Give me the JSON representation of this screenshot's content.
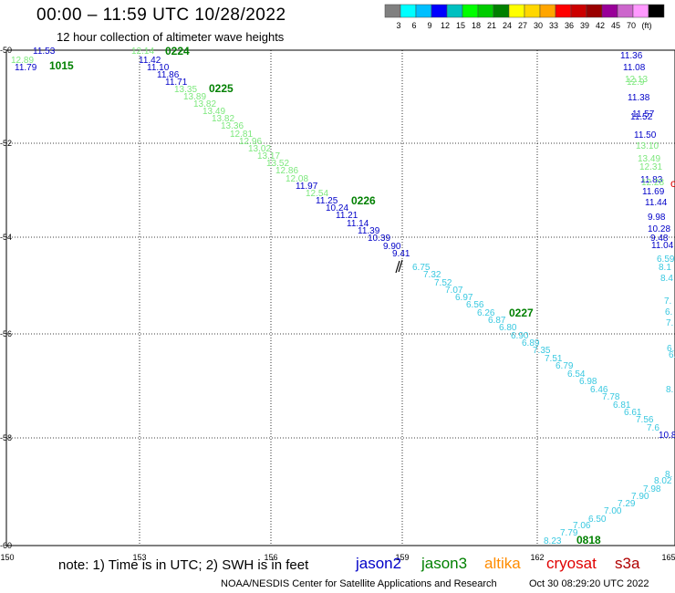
{
  "header": {
    "title": "00:00 – 11:59 UTC 10/28/2022",
    "subtitle": "12 hour collection of altimeter wave heights"
  },
  "scale": {
    "colors": [
      "#808080",
      "#00ffff",
      "#00bfff",
      "#0000ff",
      "#00c0c0",
      "#00ff00",
      "#00cc00",
      "#008000",
      "#ffff00",
      "#ffd700",
      "#ffa500",
      "#ff0000",
      "#cc0000",
      "#990000",
      "#990099",
      "#cc66cc",
      "#ff99ff",
      "#000000"
    ],
    "labels": [
      "3",
      "6",
      "9",
      "12",
      "15",
      "18",
      "21",
      "24",
      "27",
      "30",
      "33",
      "36",
      "39",
      "42",
      "45",
      "70",
      "(ft)"
    ]
  },
  "axes": {
    "lon": [
      "150",
      "153",
      "156",
      "159",
      "162",
      "165"
    ],
    "lat": [
      "-50",
      "-52",
      "-54",
      "-56",
      "-58",
      "-60"
    ]
  },
  "tracks": {
    "jason2_color": "#0000c8",
    "jason3_color": "#7ce87c",
    "cryosat_color": "#38c8e0",
    "time_color": "#008000",
    "labels": [
      {
        "t": "11.53",
        "c": "b"
      },
      {
        "t": "12.89",
        "c": "g"
      },
      {
        "t": "11.79",
        "c": "b"
      },
      {
        "t": "12.14",
        "c": "g"
      },
      {
        "t": "11.42",
        "c": "b"
      },
      {
        "t": "11.10",
        "c": "b"
      },
      {
        "t": "11.86",
        "c": "b"
      },
      {
        "t": "11.71",
        "c": "b"
      },
      {
        "t": "13.35",
        "c": "g"
      },
      {
        "t": "13.89",
        "c": "g"
      },
      {
        "t": "13.82",
        "c": "g"
      },
      {
        "t": "13.49",
        "c": "g"
      },
      {
        "t": "13.82",
        "c": "g"
      },
      {
        "t": "13.36",
        "c": "g"
      },
      {
        "t": "12.81",
        "c": "g"
      },
      {
        "t": "12.96",
        "c": "g"
      },
      {
        "t": "13.02",
        "c": "g"
      },
      {
        "t": "13.17",
        "c": "g"
      },
      {
        "t": "13.52",
        "c": "g"
      },
      {
        "t": "12.86",
        "c": "g"
      },
      {
        "t": "12.08",
        "c": "g"
      },
      {
        "t": "11.97",
        "c": "b"
      },
      {
        "t": "12.54",
        "c": "g"
      },
      {
        "t": "11.25",
        "c": "b"
      },
      {
        "t": "10.24",
        "c": "b"
      },
      {
        "t": "11.21",
        "c": "b"
      },
      {
        "t": "11.14",
        "c": "b"
      },
      {
        "t": "11.39",
        "c": "b"
      },
      {
        "t": "10.39",
        "c": "b"
      },
      {
        "t": "9.90",
        "c": "b"
      },
      {
        "t": "9.41",
        "c": "b"
      },
      {
        "t": "6.75",
        "c": "c"
      },
      {
        "t": "7.32",
        "c": "c"
      },
      {
        "t": "7.52",
        "c": "c"
      },
      {
        "t": "7.07",
        "c": "c"
      },
      {
        "t": "6.97",
        "c": "c"
      },
      {
        "t": "6.56",
        "c": "c"
      },
      {
        "t": "6.26",
        "c": "c"
      },
      {
        "t": "6.87",
        "c": "c"
      },
      {
        "t": "6.80",
        "c": "c"
      },
      {
        "t": "6.90",
        "c": "c"
      },
      {
        "t": "6.89",
        "c": "c"
      },
      {
        "t": "7.35",
        "c": "c"
      },
      {
        "t": "7.51",
        "c": "c"
      },
      {
        "t": "6.79",
        "c": "c"
      },
      {
        "t": "6.54",
        "c": "c"
      },
      {
        "t": "6.98",
        "c": "c"
      },
      {
        "t": "6.46",
        "c": "c"
      },
      {
        "t": "7.78",
        "c": "c"
      },
      {
        "t": "6.81",
        "c": "c"
      },
      {
        "t": "6.61",
        "c": "c"
      },
      {
        "t": "7.56",
        "c": "c"
      },
      {
        "t": "7.6",
        "c": "c"
      },
      {
        "t": "10.87",
        "c": "b"
      },
      {
        "t": "11.36",
        "c": "b"
      },
      {
        "t": "11.08",
        "c": "b"
      },
      {
        "t": "12.13",
        "c": "g"
      },
      {
        "t": "12.9",
        "c": "g"
      },
      {
        "t": "11.38",
        "c": "b"
      },
      {
        "t": "11.57",
        "c": "b"
      },
      {
        "t": "11.52",
        "c": "b"
      },
      {
        "t": "11.50",
        "c": "b"
      },
      {
        "t": "13.10",
        "c": "g"
      },
      {
        "t": "13.49",
        "c": "g"
      },
      {
        "t": "12.31",
        "c": "g"
      },
      {
        "t": "11.83",
        "c": "b"
      },
      {
        "t": "12.28",
        "c": "g"
      },
      {
        "t": "11.69",
        "c": "b"
      },
      {
        "t": "11.44",
        "c": "b"
      },
      {
        "t": "9.98",
        "c": "b"
      },
      {
        "t": "10.28",
        "c": "b"
      },
      {
        "t": "9.48",
        "c": "b"
      },
      {
        "t": "11.04",
        "c": "b"
      },
      {
        "t": "6.59",
        "c": "c"
      },
      {
        "t": "8.1",
        "c": "c"
      },
      {
        "t": "8.4",
        "c": "c"
      },
      {
        "t": "7.",
        "c": "c"
      },
      {
        "t": "6.",
        "c": "c"
      },
      {
        "t": "7.",
        "c": "c"
      },
      {
        "t": "6.",
        "c": "c"
      },
      {
        "t": "6.",
        "c": "c"
      },
      {
        "t": "8.",
        "c": "c"
      },
      {
        "t": "8.23",
        "c": "c"
      },
      {
        "t": "7.79",
        "c": "c"
      },
      {
        "t": "7.06",
        "c": "c"
      },
      {
        "t": "6.50",
        "c": "c"
      },
      {
        "t": "7.00",
        "c": "c"
      },
      {
        "t": "7.29",
        "c": "c"
      },
      {
        "t": "7.90",
        "c": "c"
      },
      {
        "t": "7.98",
        "c": "c"
      },
      {
        "t": "8.02",
        "c": "c"
      },
      {
        "t": "8.",
        "c": "c"
      }
    ],
    "times": [
      "1015",
      "0224",
      "0225",
      "0226",
      "0227",
      "0818"
    ]
  },
  "footer": {
    "note": "note: 1) Time is in UTC; 2) SWH is in feet",
    "satellites": [
      {
        "name": "jason2",
        "color": "#0000c8"
      },
      {
        "name": "jason3",
        "color": "#008000"
      },
      {
        "name": "altika",
        "color": "#ff8c00"
      },
      {
        "name": "cryosat",
        "color": "#e00000"
      },
      {
        "name": "s3a",
        "color": "#b00000"
      }
    ],
    "credit": "NOAA/NESDIS Center for Satellite Applications and Research",
    "timestamp": "Oct 30 08:29:20 UTC 2022"
  }
}
